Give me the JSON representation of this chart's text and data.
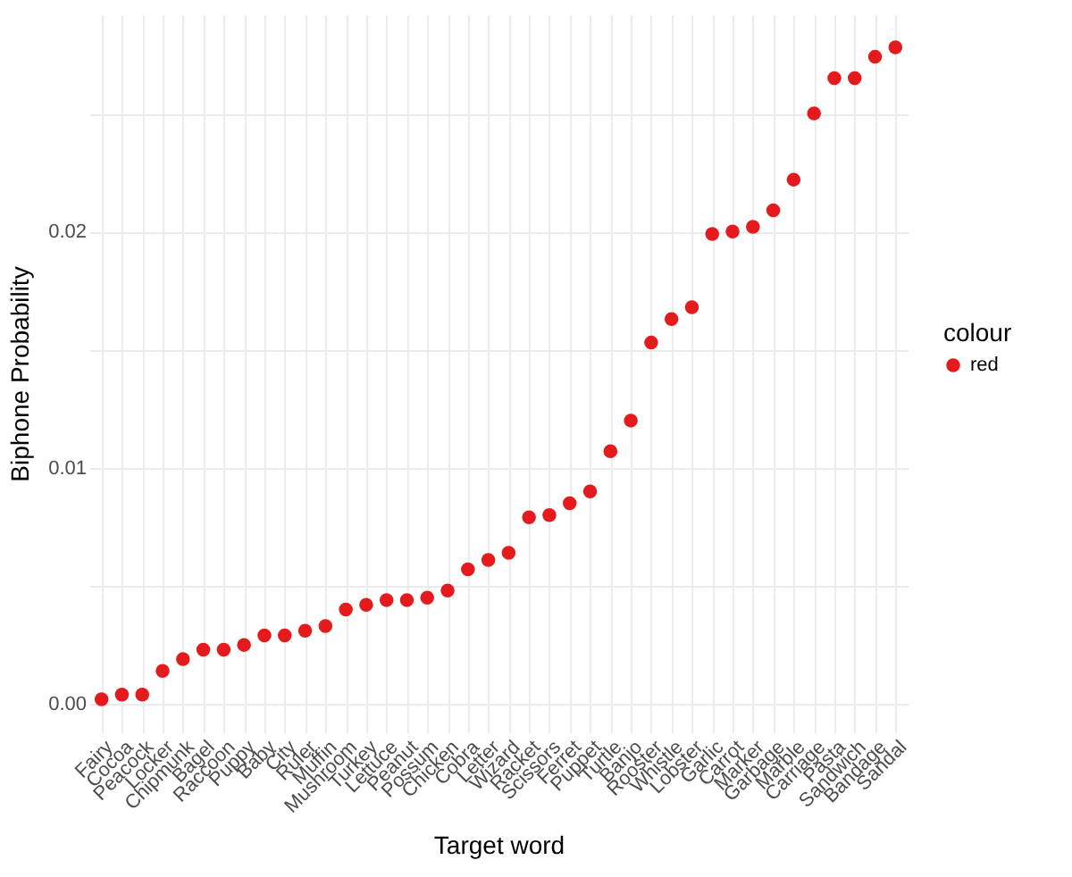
{
  "chart_data": {
    "type": "scatter",
    "xlabel": "Target word",
    "ylabel": "Biphone Probability",
    "legend_title": "colour",
    "legend": "right",
    "grid": true,
    "marker": "circle",
    "categories": [
      "Fairy",
      "Cocoa",
      "Peacock",
      "Locker",
      "Chipmunk",
      "Bagel",
      "Raccoon",
      "Puppy",
      "Baby",
      "City",
      "Ruler",
      "Muffin",
      "Mushroom",
      "Turkey",
      "Lettuce",
      "Peanut",
      "Possum",
      "Chicken",
      "Cobra",
      "Letter",
      "Wizard",
      "Racket",
      "Scissors",
      "Ferret",
      "Puppet",
      "Turtle",
      "Banjo",
      "Rooster",
      "Whistle",
      "Lobster",
      "Garlic",
      "Carrot",
      "Marker",
      "Garbage",
      "Marble",
      "Carriage",
      "Pasta",
      "Sandwich",
      "Bandage",
      "Sandal"
    ],
    "series": [
      {
        "name": "red",
        "color": "#e41a1c",
        "values": [
          0.0002,
          0.0004,
          0.0004,
          0.0014,
          0.0019,
          0.0023,
          0.0023,
          0.0025,
          0.0029,
          0.0029,
          0.0031,
          0.0033,
          0.004,
          0.0042,
          0.0044,
          0.0044,
          0.0045,
          0.0048,
          0.0057,
          0.0061,
          0.0064,
          0.0079,
          0.008,
          0.0085,
          0.009,
          0.0107,
          0.012,
          0.0153,
          0.0163,
          0.0168,
          0.0199,
          0.02,
          0.0202,
          0.0209,
          0.0222,
          0.025,
          0.0265,
          0.0265,
          0.0274,
          0.0278
        ]
      }
    ],
    "ylim": [
      -0.0012,
      0.0292
    ],
    "yticks": [
      {
        "value": 0,
        "label": "0.00"
      },
      {
        "value": 0.005,
        "label": null
      },
      {
        "value": 0.01,
        "label": "0.01"
      },
      {
        "value": 0.015,
        "label": null
      },
      {
        "value": 0.02,
        "label": "0.02"
      },
      {
        "value": 0.025,
        "label": null
      }
    ]
  }
}
